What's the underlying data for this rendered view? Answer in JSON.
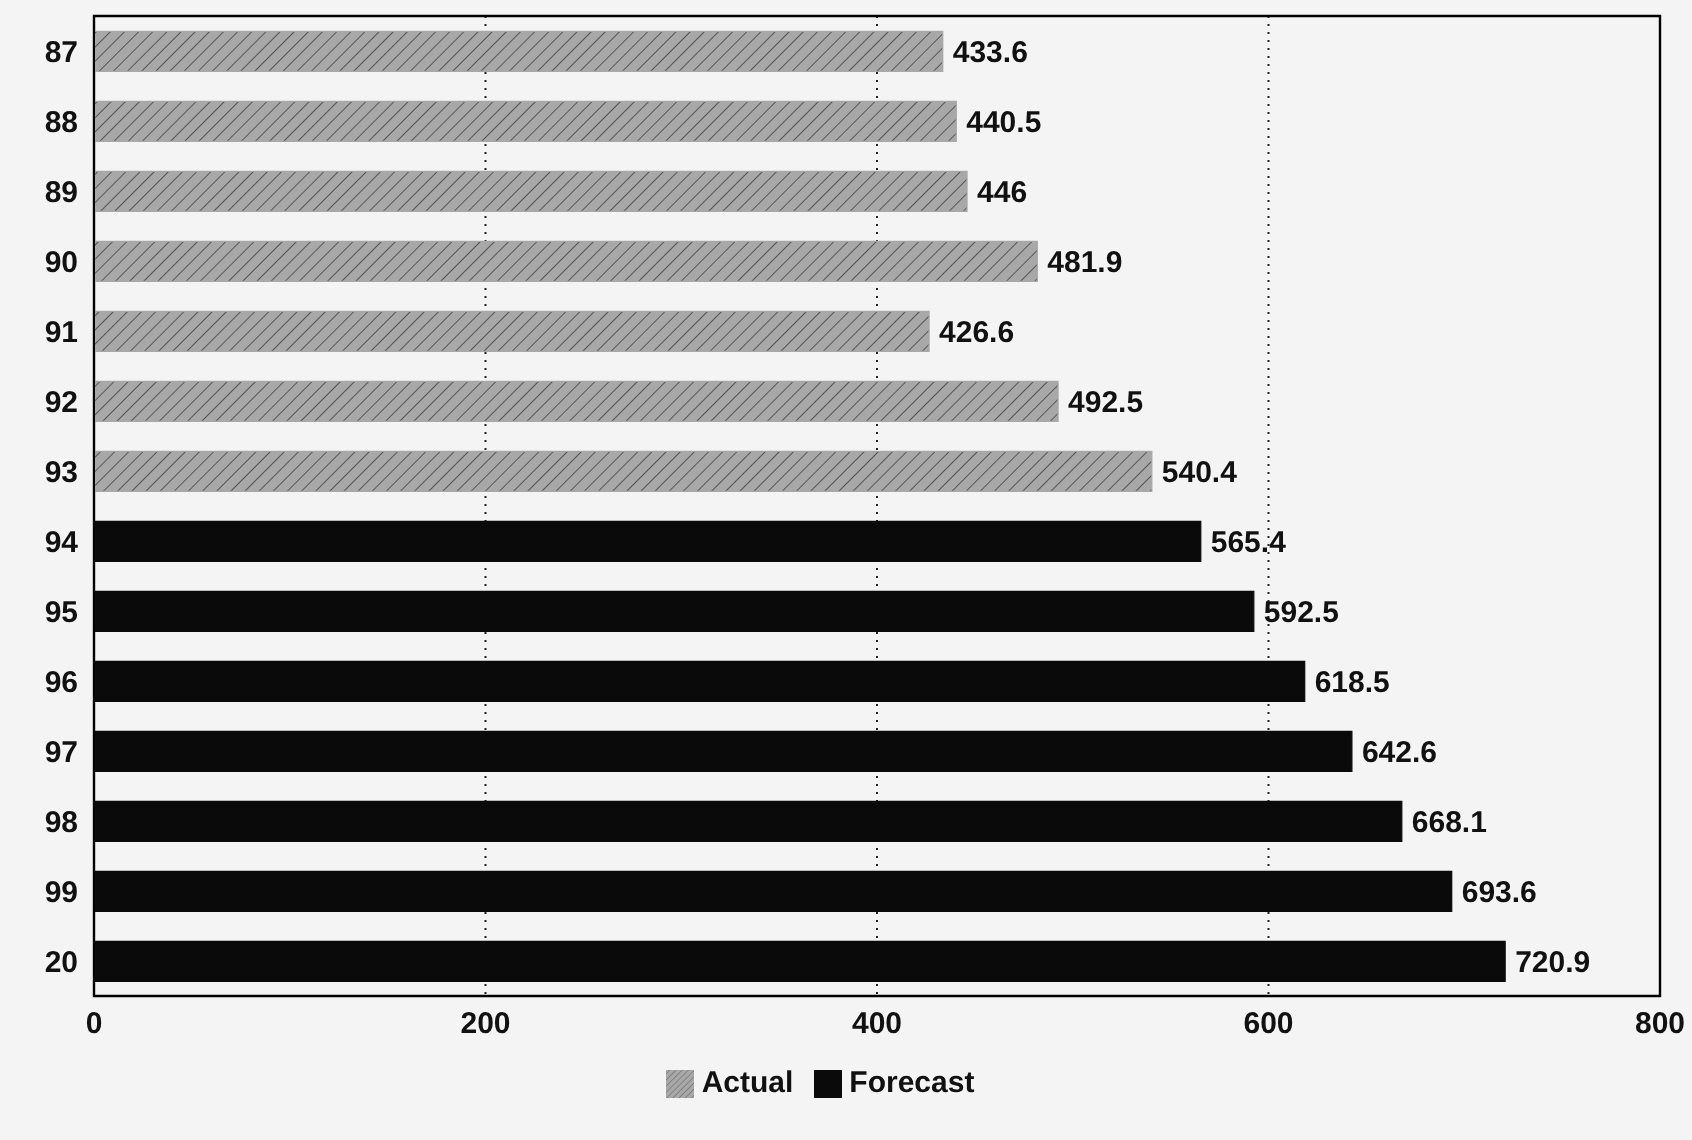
{
  "chart_data": {
    "type": "bar",
    "orientation": "horizontal",
    "categories": [
      "87",
      "88",
      "89",
      "90",
      "91",
      "92",
      "93",
      "94",
      "95",
      "96",
      "97",
      "98",
      "99",
      "20"
    ],
    "series": [
      {
        "name": "Actual",
        "color": "#a8a8a8",
        "values": [
          433.6,
          440.5,
          446,
          481.9,
          426.6,
          492.5,
          540.4,
          null,
          null,
          null,
          null,
          null,
          null,
          null
        ]
      },
      {
        "name": "Forecast",
        "color": "#0a0a0a",
        "values": [
          null,
          null,
          null,
          null,
          null,
          null,
          null,
          565.4,
          592.5,
          618.5,
          642.6,
          668.1,
          693.6,
          720.9
        ]
      }
    ],
    "xlim": [
      0,
      800
    ],
    "xticks": [
      0,
      200,
      400,
      600,
      800
    ],
    "grid": "x",
    "legend": "bottom",
    "data_labels": true
  }
}
